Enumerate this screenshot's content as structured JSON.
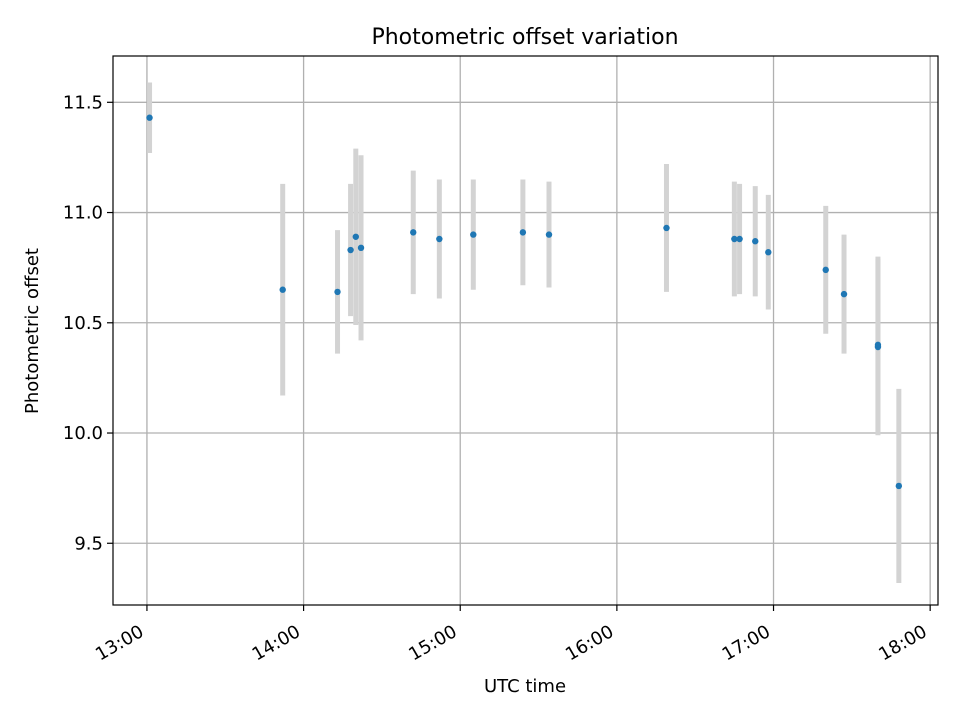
{
  "chart_data": {
    "type": "scatter",
    "title": "Photometric offset variation",
    "xlabel": "UTC time",
    "ylabel": "Photometric offset",
    "x_axis_type": "time",
    "xlim": [
      "12:47",
      "18:03"
    ],
    "ylim": [
      9.22,
      11.71
    ],
    "x_ticks": [
      "13:00",
      "14:00",
      "15:00",
      "16:00",
      "17:00",
      "18:00"
    ],
    "y_ticks": [
      9.5,
      10.0,
      10.5,
      11.0,
      11.5
    ],
    "y_tick_labels": [
      "9.5",
      "10.0",
      "10.5",
      "11.0",
      "11.5"
    ],
    "grid": true,
    "point_color": "#1f77b4",
    "errorbar_color": "#d3d3d3",
    "points": [
      {
        "time": "13:01",
        "y": 11.43,
        "yerr": 0.16
      },
      {
        "time": "13:52",
        "y": 10.65,
        "yerr": 0.48
      },
      {
        "time": "14:13",
        "y": 10.64,
        "yerr": 0.28
      },
      {
        "time": "14:18",
        "y": 10.83,
        "yerr": 0.3
      },
      {
        "time": "14:20",
        "y": 10.89,
        "yerr": 0.4
      },
      {
        "time": "14:22",
        "y": 10.84,
        "yerr": 0.42
      },
      {
        "time": "14:42",
        "y": 10.91,
        "yerr": 0.28
      },
      {
        "time": "14:52",
        "y": 10.88,
        "yerr": 0.27
      },
      {
        "time": "15:05",
        "y": 10.9,
        "yerr": 0.25
      },
      {
        "time": "15:24",
        "y": 10.91,
        "yerr": 0.24
      },
      {
        "time": "15:34",
        "y": 10.9,
        "yerr": 0.24
      },
      {
        "time": "16:19",
        "y": 10.93,
        "yerr": 0.29
      },
      {
        "time": "16:45",
        "y": 10.88,
        "yerr": 0.26
      },
      {
        "time": "16:47",
        "y": 10.88,
        "yerr": 0.25
      },
      {
        "time": "16:53",
        "y": 10.87,
        "yerr": 0.25
      },
      {
        "time": "16:58",
        "y": 10.82,
        "yerr": 0.26
      },
      {
        "time": "17:20",
        "y": 10.74,
        "yerr": 0.29
      },
      {
        "time": "17:27",
        "y": 10.63,
        "yerr": 0.27
      },
      {
        "time": "17:40",
        "y": 10.39,
        "yerr": 0.4
      },
      {
        "time": "17:40",
        "y": 10.4,
        "yerr": 0.4
      },
      {
        "time": "17:48",
        "y": 9.76,
        "yerr": 0.44
      }
    ]
  }
}
